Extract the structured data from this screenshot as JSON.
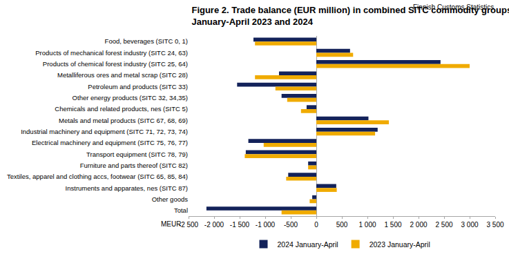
{
  "chart_data": {
    "type": "bar",
    "orientation": "horizontal",
    "title": "Figure 2. Trade balance (EUR million) in combined SITC commodity groups in\nJanuary-April 2023 and 2024",
    "source": "Finnish Customs Statistics",
    "xlabel": "MEUR",
    "categories": [
      "Food, beverages (SITC 0, 1)",
      "Products of mechanical forest industry (SITC 24, 63)",
      "Products of chemical forest industry (SITC 25, 64)",
      "Metalliferous ores and metal scrap (SITC 28)",
      "Petroleum and products (SITC 33)",
      "Other energy products (SITC 32, 34,35)",
      "Chemicals and related products, nes (SITC 5)",
      "Metals and metal products (SITC 67, 68, 69)",
      "Industrial machinery and equipment (SITC 71, 72, 73, 74)",
      "Electrical machinery and equipment (SITC 75, 76, 77)",
      "Transport equipment (SITC 78, 79)",
      "Furniture and parts thereof (SITC 82)",
      "Textiles, apparel and clothing accs, footwear (SITC 65, 85, 84)",
      "Instruments and apparates, nes (SITC 87)",
      "Other goods",
      "Total"
    ],
    "series": [
      {
        "name": "2024 January-April",
        "color": "#13225a",
        "values": [
          -1230,
          660,
          2430,
          -730,
          -1550,
          -680,
          -190,
          1020,
          1200,
          -1330,
          -1380,
          -160,
          -550,
          390,
          -80,
          -2150
        ]
      },
      {
        "name": "2023 January-April",
        "color": "#f0ab00",
        "values": [
          -1200,
          720,
          3000,
          -1200,
          -800,
          -570,
          -300,
          1420,
          1150,
          -1030,
          -1400,
          -160,
          -590,
          400,
          -130,
          -680
        ]
      }
    ],
    "xlim": [
      -2500,
      3500
    ],
    "xticks": [
      {
        "value": -2500,
        "label": "-2 500"
      },
      {
        "value": -2000,
        "label": "-2 000"
      },
      {
        "value": -1500,
        "label": "-1 500"
      },
      {
        "value": -1000,
        "label": "-1 000"
      },
      -500,
      0,
      500,
      {
        "value": 1000,
        "label": "1 000"
      },
      {
        "value": 1500,
        "label": "1 500"
      },
      {
        "value": 2000,
        "label": "2 000"
      },
      {
        "value": 2500,
        "label": "2 500"
      },
      {
        "value": 3000,
        "label": "3 000"
      },
      {
        "value": 3500,
        "label": "3 500"
      }
    ],
    "grid": false,
    "legend": "bottom"
  }
}
